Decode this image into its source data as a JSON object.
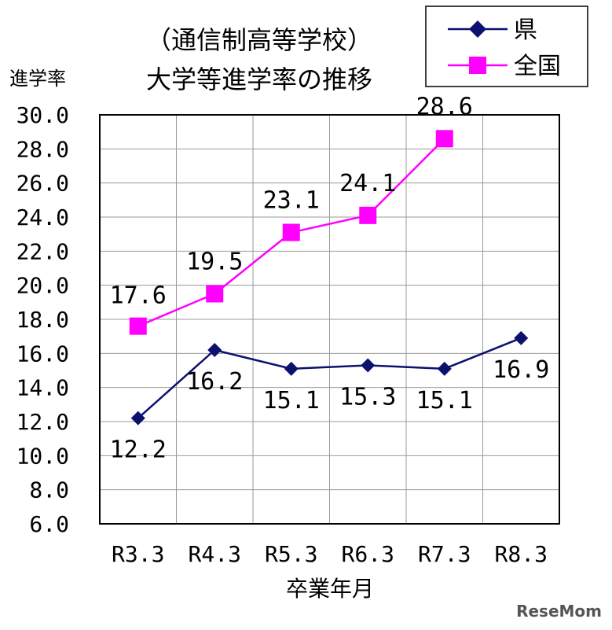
{
  "chart_data": {
    "type": "line",
    "title_line1": "（通信制高等学校）",
    "title_line2": "大学等進学率の推移",
    "ylabel": "進学率",
    "xlabel": "卒業年月",
    "categories": [
      "R3.3",
      "R4.3",
      "R5.3",
      "R6.3",
      "R7.3",
      "R8.3"
    ],
    "y_ticks": [
      "6.0",
      "8.0",
      "10.0",
      "12.0",
      "14.0",
      "16.0",
      "18.0",
      "20.0",
      "22.0",
      "24.0",
      "26.0",
      "28.0",
      "30.0"
    ],
    "ylim": [
      6.0,
      30.0
    ],
    "grid": true,
    "legend_position": "top-right",
    "series": [
      {
        "name": "県",
        "color": "#0c1170",
        "marker": "diamond",
        "values": [
          12.2,
          16.2,
          15.1,
          15.3,
          15.1,
          16.9
        ],
        "labels": [
          "12.2",
          "16.2",
          "15.1",
          "15.3",
          "15.1",
          "16.9"
        ]
      },
      {
        "name": "全国",
        "color": "#ff00ff",
        "marker": "square",
        "values": [
          17.6,
          19.5,
          23.1,
          24.1,
          28.6,
          null
        ],
        "labels": [
          "17.6",
          "19.5",
          "23.1",
          "24.1",
          "28.6",
          null
        ]
      }
    ]
  },
  "watermark": "ReseMom"
}
